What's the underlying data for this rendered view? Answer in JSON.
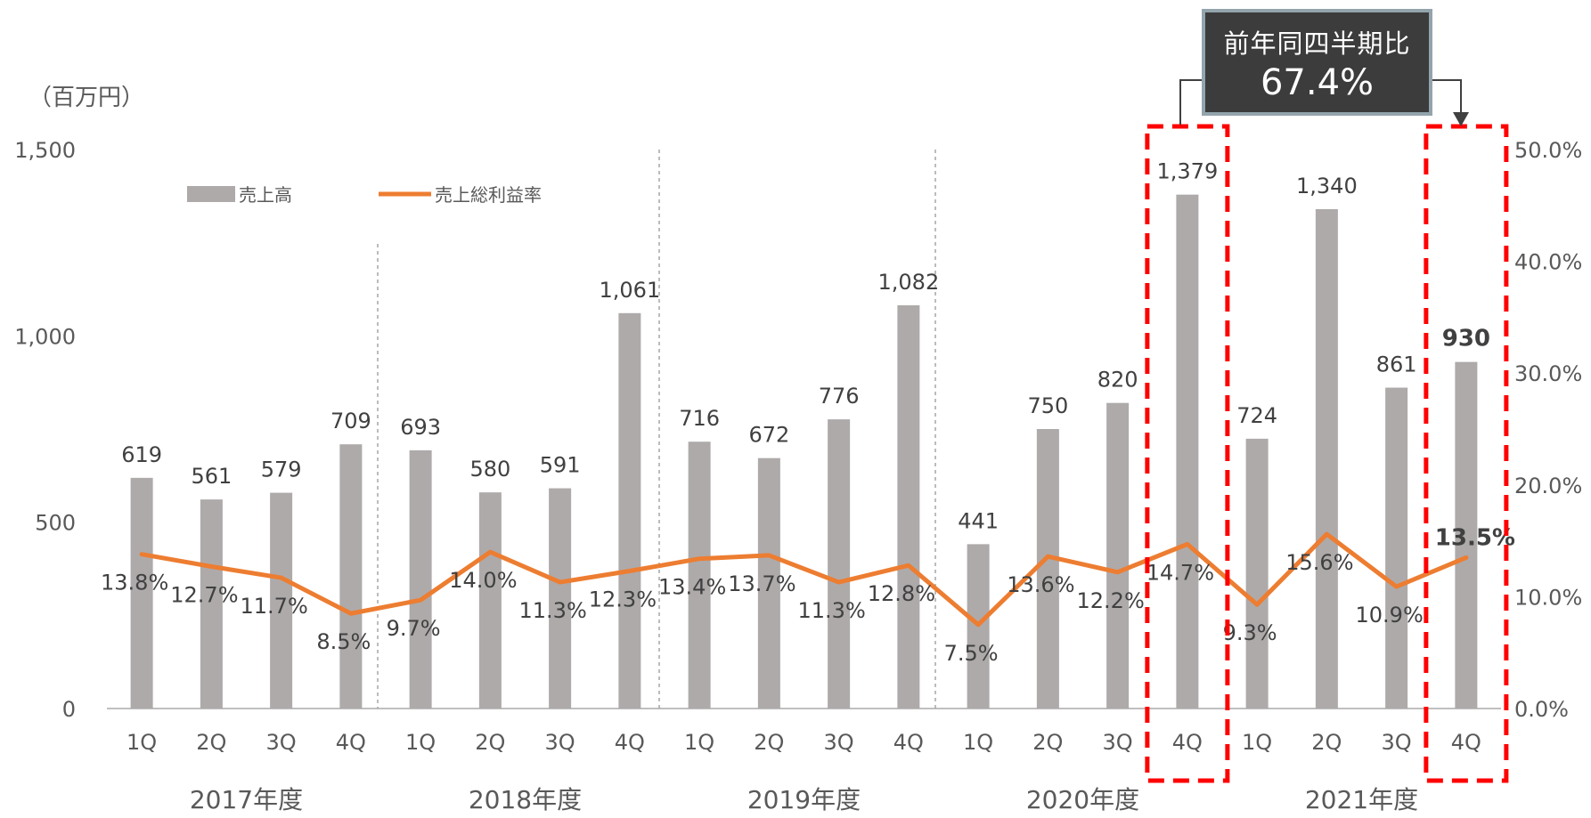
{
  "chart_data": {
    "type": "bar+line",
    "unit_label": "（百万円）",
    "legend": [
      "売上高",
      "売上総利益率"
    ],
    "quarters": [
      "1Q",
      "2Q",
      "3Q",
      "4Q",
      "1Q",
      "2Q",
      "3Q",
      "4Q",
      "1Q",
      "2Q",
      "3Q",
      "4Q",
      "1Q",
      "2Q",
      "3Q",
      "4Q",
      "1Q",
      "2Q",
      "3Q",
      "4Q"
    ],
    "years": [
      "2017年度",
      "2018年度",
      "2019年度",
      "2020年度",
      "2021年度"
    ],
    "y_left": {
      "ticks": [
        "0",
        "500",
        "1,000",
        "1,500"
      ],
      "range": [
        0,
        1500
      ]
    },
    "y_right": {
      "ticks": [
        "0.0%",
        "10.0%",
        "20.0%",
        "30.0%",
        "40.0%",
        "50.0%"
      ],
      "range": [
        0,
        50
      ]
    },
    "series": [
      {
        "name": "売上高",
        "type": "bar",
        "color": "#aeaaaa",
        "values": [
          619,
          561,
          579,
          709,
          693,
          580,
          591,
          1061,
          716,
          672,
          776,
          1082,
          441,
          750,
          820,
          1379,
          724,
          1340,
          861,
          930
        ],
        "labels": [
          "619",
          "561",
          "579",
          "709",
          "693",
          "580",
          "591",
          "1,061",
          "716",
          "672",
          "776",
          "1,082",
          "441",
          "750",
          "820",
          "1,379",
          "724",
          "1,340",
          "861",
          "930"
        ]
      },
      {
        "name": "売上総利益率",
        "type": "line",
        "color": "#ed7d31",
        "values": [
          13.8,
          12.7,
          11.7,
          8.5,
          9.7,
          14.0,
          11.3,
          12.3,
          13.4,
          13.7,
          11.3,
          12.8,
          7.5,
          13.6,
          12.2,
          14.7,
          9.3,
          15.6,
          10.9,
          13.5
        ],
        "labels": [
          "13.8%",
          "12.7%",
          "11.7%",
          "8.5%",
          "9.7%",
          "14.0%",
          "11.3%",
          "12.3%",
          "13.4%",
          "13.7%",
          "11.3%",
          "12.8%",
          "7.5%",
          "13.6%",
          "12.2%",
          "14.7%",
          "9.3%",
          "15.6%",
          "10.9%",
          "13.5%"
        ]
      }
    ],
    "highlight": {
      "indices": [
        15,
        19
      ],
      "color": "#ff0000"
    },
    "callout": {
      "title": "前年同四半期比",
      "value": "67.4%"
    }
  }
}
